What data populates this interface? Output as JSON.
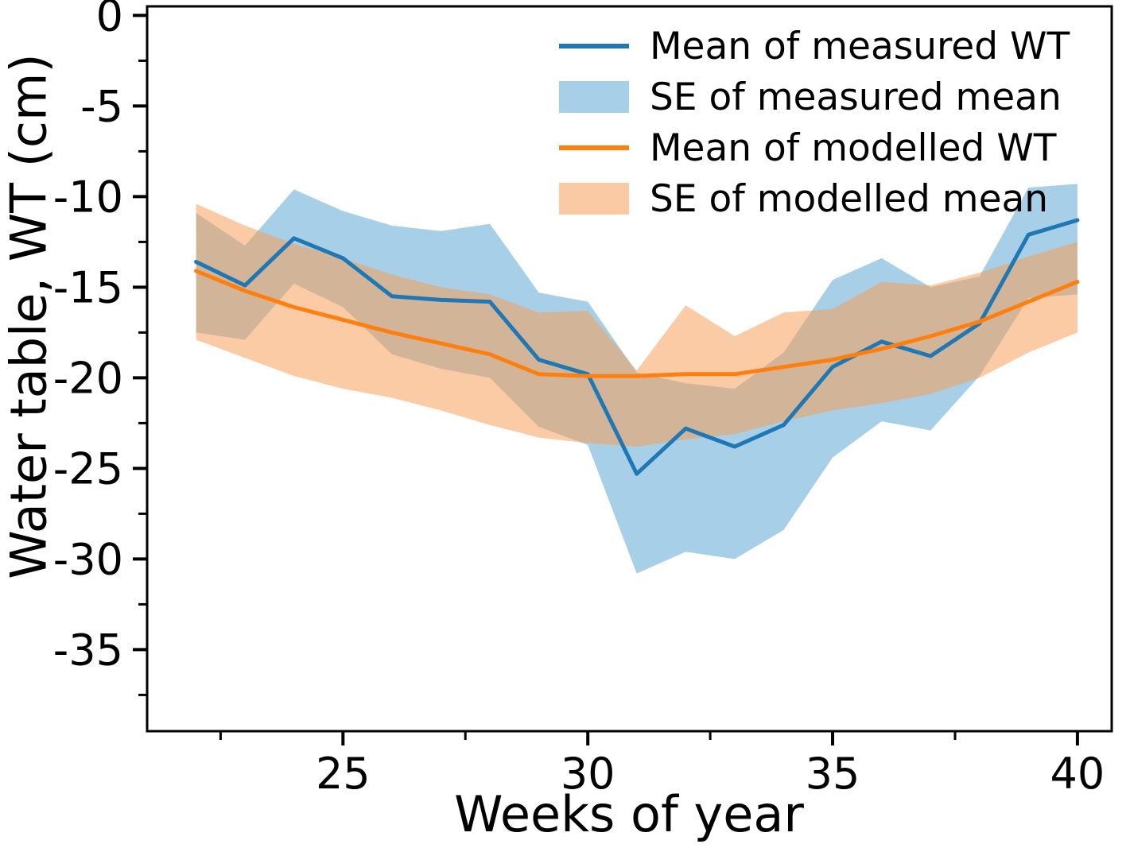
{
  "chart_data": {
    "type": "line",
    "title": "",
    "xlabel": "Weeks of year",
    "ylabel": "Water table, WT (cm)",
    "x": [
      22,
      23,
      24,
      25,
      26,
      27,
      28,
      29,
      30,
      31,
      32,
      33,
      34,
      35,
      36,
      37,
      38,
      39,
      40
    ],
    "series": [
      {
        "name": "Mean of measured WT",
        "color": "#1f77b4",
        "values": [
          -13.6,
          -14.9,
          -12.3,
          -13.4,
          -15.5,
          -15.7,
          -15.8,
          -19.0,
          -19.8,
          -25.3,
          -22.8,
          -23.8,
          -22.6,
          -19.4,
          -18.0,
          -18.8,
          -17.0,
          -12.1,
          -11.3
        ]
      },
      {
        "name": "Mean of modelled WT",
        "color": "#ff7f0e",
        "values": [
          -14.1,
          -15.2,
          -16.1,
          -16.8,
          -17.5,
          -18.1,
          -18.7,
          -19.8,
          -19.9,
          -19.9,
          -19.8,
          -19.8,
          -19.4,
          -19.0,
          -18.4,
          -17.7,
          -16.9,
          -15.8,
          -14.7
        ]
      }
    ],
    "bands": [
      {
        "name": "SE of measured mean",
        "color": "#4f9fd0",
        "opacity": 0.5,
        "upper": [
          -10.9,
          -12.7,
          -9.6,
          -10.8,
          -11.6,
          -11.9,
          -11.5,
          -15.3,
          -15.8,
          -19.7,
          -20.3,
          -20.6,
          -18.6,
          -14.6,
          -13.4,
          -15.0,
          -14.4,
          -9.5,
          -9.3
        ],
        "lower": [
          -17.5,
          -17.9,
          -14.8,
          -16.1,
          -18.7,
          -19.5,
          -20.0,
          -22.7,
          -23.7,
          -30.8,
          -29.6,
          -30.0,
          -28.4,
          -24.4,
          -22.4,
          -22.9,
          -19.9,
          -15.6,
          -15.4
        ]
      },
      {
        "name": "SE of modelled mean",
        "color": "#f5a05a",
        "opacity": 0.55,
        "upper": [
          -10.4,
          -11.6,
          -12.6,
          -13.4,
          -14.3,
          -15.0,
          -15.4,
          -16.4,
          -16.3,
          -19.6,
          -16.0,
          -17.7,
          -16.4,
          -16.2,
          -14.7,
          -14.9,
          -14.2,
          -13.3,
          -12.5
        ],
        "lower": [
          -17.9,
          -18.9,
          -19.9,
          -20.6,
          -21.1,
          -21.8,
          -22.6,
          -23.3,
          -23.6,
          -23.8,
          -23.4,
          -23.1,
          -22.4,
          -21.8,
          -21.4,
          -20.9,
          -20.0,
          -18.6,
          -17.5
        ]
      }
    ],
    "xlim": [
      21,
      40.7
    ],
    "ylim": [
      -39.5,
      0.5
    ],
    "xticks": [
      25,
      30,
      35,
      40
    ],
    "xticks_minor": [
      22.5,
      27.5,
      32.5,
      37.5
    ],
    "yticks": [
      0,
      -5,
      -10,
      -15,
      -20,
      -25,
      -30,
      -35
    ],
    "yticks_minor": [
      -2.5,
      -7.5,
      -12.5,
      -17.5,
      -22.5,
      -27.5,
      -32.5,
      -37.5
    ],
    "grid": false,
    "legend_position": "upper right",
    "legend": [
      {
        "label": "Mean of measured WT",
        "swatch": "line",
        "color": "#1f77b4"
      },
      {
        "label": "SE of measured mean",
        "swatch": "patch",
        "color": "#a7cfe8"
      },
      {
        "label": "Mean of modelled WT",
        "swatch": "line",
        "color": "#ff7f0e"
      },
      {
        "label": "SE of modelled mean",
        "swatch": "patch",
        "color": "#f9caa4"
      }
    ]
  },
  "colors": {
    "background": "#ffffff",
    "axis": "#000000",
    "text": "#000000"
  }
}
